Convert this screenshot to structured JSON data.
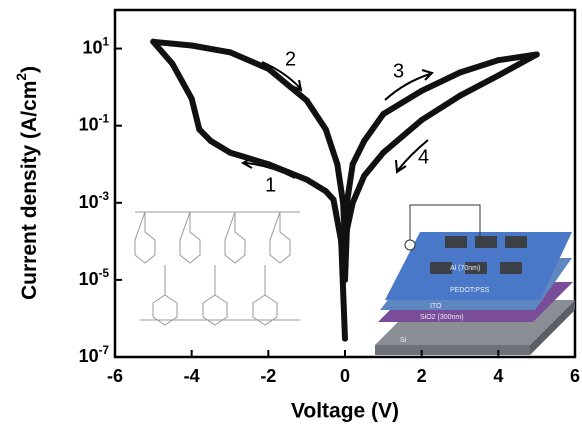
{
  "chart_data": {
    "type": "line",
    "xlabel": "Voltage (V)",
    "ylabel": "Current density (A/cm^2)",
    "log_y": true,
    "xlim": [
      -6,
      6
    ],
    "xticks": [
      -6,
      -4,
      -2,
      0,
      2,
      4,
      6
    ],
    "ylim": [
      1e-07,
      100
    ],
    "yticks": [
      {
        "value": 10,
        "label": "10^1"
      },
      {
        "value": 0.1,
        "label": "10^-1"
      },
      {
        "value": 0.001,
        "label": "10^-3"
      },
      {
        "value": 1e-05,
        "label": "10^-5"
      },
      {
        "value": 1e-07,
        "label": "10^-7"
      }
    ],
    "series": [
      {
        "name": "1",
        "color": "#111111",
        "x": [
          0,
          -0.1,
          -0.3,
          -0.5,
          -1,
          -2,
          -3,
          -3.5,
          -3.8,
          -4,
          -4.5,
          -5
        ],
        "values": [
          3e-07,
          0.0001,
          0.0012,
          0.002,
          0.004,
          0.01,
          0.02,
          0.04,
          0.08,
          0.5,
          4,
          15
        ]
      },
      {
        "name": "2",
        "color": "#111111",
        "x": [
          -5,
          -4,
          -3,
          -2,
          -1,
          -0.5,
          -0.2,
          -0.05,
          0
        ],
        "values": [
          15,
          12,
          8,
          3,
          0.45,
          0.08,
          0.01,
          0.001,
          0.0001
        ]
      },
      {
        "name": "3",
        "color": "#111111",
        "x": [
          0,
          0.05,
          0.2,
          0.5,
          1,
          2,
          3,
          4,
          5
        ],
        "values": [
          0.0001,
          0.001,
          0.01,
          0.04,
          0.2,
          0.8,
          2.4,
          5,
          7
        ]
      },
      {
        "name": "4",
        "color": "#111111",
        "x": [
          5,
          4,
          3,
          2,
          1,
          0.5,
          0.2,
          0.05,
          0
        ],
        "values": [
          7,
          2,
          0.6,
          0.14,
          0.02,
          0.005,
          0.001,
          0.0002,
          1e-05
        ]
      }
    ],
    "annotations": [
      "1",
      "2",
      "3",
      "4"
    ],
    "inset_labels": [
      "Al (70nm)",
      "PEDOT:PSS",
      "ITO",
      "SiO2 (300nm)",
      "Si"
    ]
  }
}
